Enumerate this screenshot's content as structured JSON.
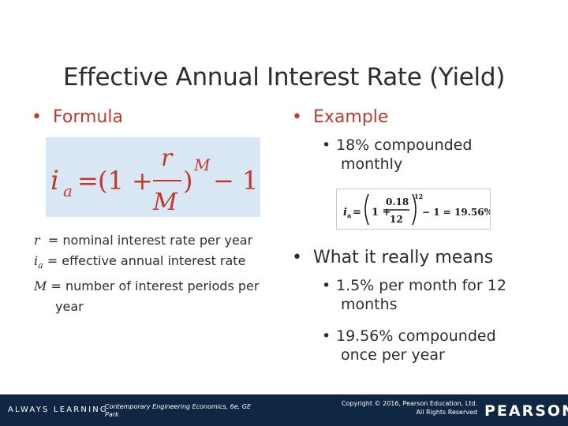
{
  "title": "Effective Annual Interest Rate (Yield)",
  "left": {
    "heading": "Formula",
    "formula": {
      "lhs": "i",
      "lhs_sub": "a",
      "equals": "=",
      "open": "(1 +",
      "numerator": "r",
      "denominator": "M",
      "close": ")",
      "exponent": "M",
      "tail": "− 1"
    },
    "definitions": [
      {
        "symbol": "r",
        "sub": "",
        "text": "  = nominal interest rate per year"
      },
      {
        "symbol": "i",
        "sub": "a",
        "text": " = effective annual interest rate"
      },
      {
        "symbol": "M",
        "sub": "",
        "text": " = number of interest periods per"
      }
    ],
    "definition_wrap": "year"
  },
  "right": {
    "heading": "Example",
    "example_item_line1": "18% compounded",
    "example_item_line2": "monthly",
    "example_formula": {
      "lhs": "i",
      "lhs_sub": "a",
      "equals": "=",
      "one_plus": "1 +",
      "numerator": "0.18",
      "denominator": "12",
      "exponent": "12",
      "result": "− 1 = 19.56%"
    },
    "meaning_heading": "What it really means",
    "meaning_items": [
      {
        "line1": "1.5% per month for 12",
        "line2": "months"
      },
      {
        "line1": "19.56% compounded",
        "line2": "once per year"
      }
    ]
  },
  "footer": {
    "left": "ALWAYS LEARNING",
    "book_line1": "Contemporary Engineering Economics, 6e, GE",
    "book_line2": "Park",
    "copyright_line1": "Copyright © 2016, Pearson Education, Ltd.",
    "copyright_line2": "All Rights Reserved",
    "brand": "PEARSON"
  },
  "colors": {
    "accent": "#c0392b",
    "formula_bg": "#d9e7f4",
    "footer_bg": "#0f2742"
  }
}
